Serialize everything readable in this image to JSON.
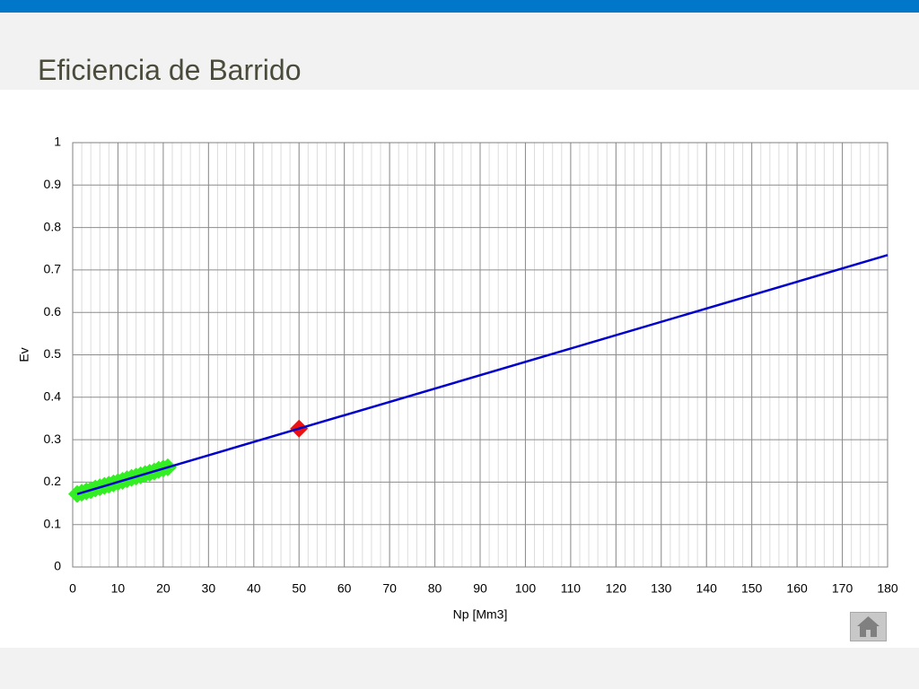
{
  "title": "Eficiencia de Barrido",
  "chart_data": {
    "type": "line",
    "xlabel": "Np [Mm3]",
    "ylabel": "Ev",
    "xlim": [
      0,
      180
    ],
    "ylim": [
      0,
      1
    ],
    "xticks": [
      0,
      10,
      20,
      30,
      40,
      50,
      60,
      70,
      80,
      90,
      100,
      110,
      120,
      130,
      140,
      150,
      160,
      170,
      180
    ],
    "yticks": [
      0,
      0.1,
      0.2,
      0.3,
      0.4,
      0.5,
      0.6,
      0.7,
      0.8,
      0.9,
      1
    ],
    "grid": true,
    "x_minor_grid": 2,
    "series": [
      {
        "color": "#0000cc",
        "style": "line",
        "x": [
          1,
          180
        ],
        "values": [
          0.172,
          0.735
        ]
      },
      {
        "color": "#33ee22",
        "style": "marker",
        "x": [
          1,
          2,
          3,
          4,
          5,
          6,
          7,
          8,
          9,
          10,
          11,
          12,
          13,
          14,
          15,
          16,
          17,
          18,
          19,
          20,
          21
        ],
        "values": [
          0.172,
          0.175,
          0.178,
          0.181,
          0.185,
          0.188,
          0.191,
          0.194,
          0.197,
          0.2,
          0.203,
          0.207,
          0.21,
          0.213,
          0.216,
          0.219,
          0.222,
          0.225,
          0.229,
          0.232,
          0.235
        ]
      },
      {
        "color": "#ee1111",
        "style": "marker",
        "x": [
          50
        ],
        "values": [
          0.326
        ]
      }
    ]
  }
}
